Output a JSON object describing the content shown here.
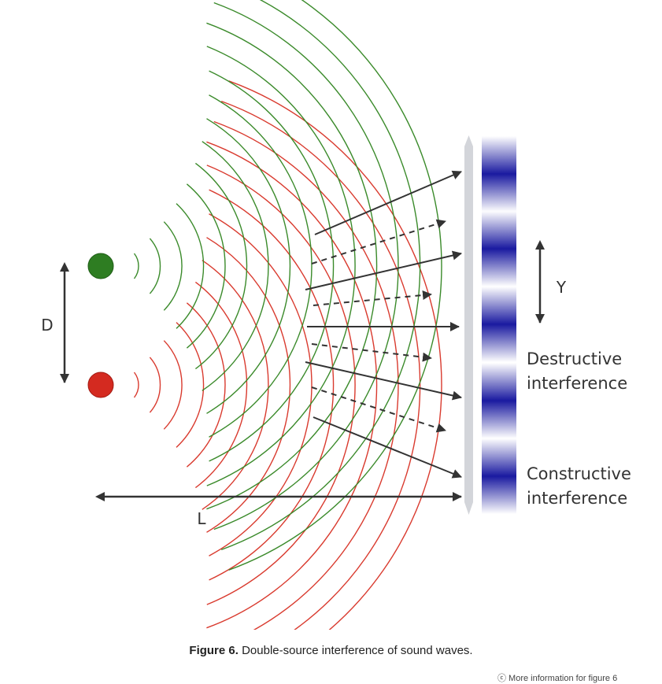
{
  "labels": {
    "D": "D",
    "L": "L",
    "Y": "Y",
    "destructive_1": "Destructive",
    "destructive_2": "interference",
    "constructive_1": "Constructive",
    "constructive_2": "interference"
  },
  "caption": {
    "prefix": "Figure 6.",
    "text": " Double-source interference of sound waves."
  },
  "footer_note": "ⓒ  More information for figure 6",
  "colors": {
    "source_top": "#2e7d22",
    "source_bottom": "#d42a20",
    "wave_top": "#3a8a2a",
    "wave_bottom": "#d93a2e",
    "arrow": "#333333",
    "screen": "#d3d5da",
    "band": "#1a1aa0"
  }
}
